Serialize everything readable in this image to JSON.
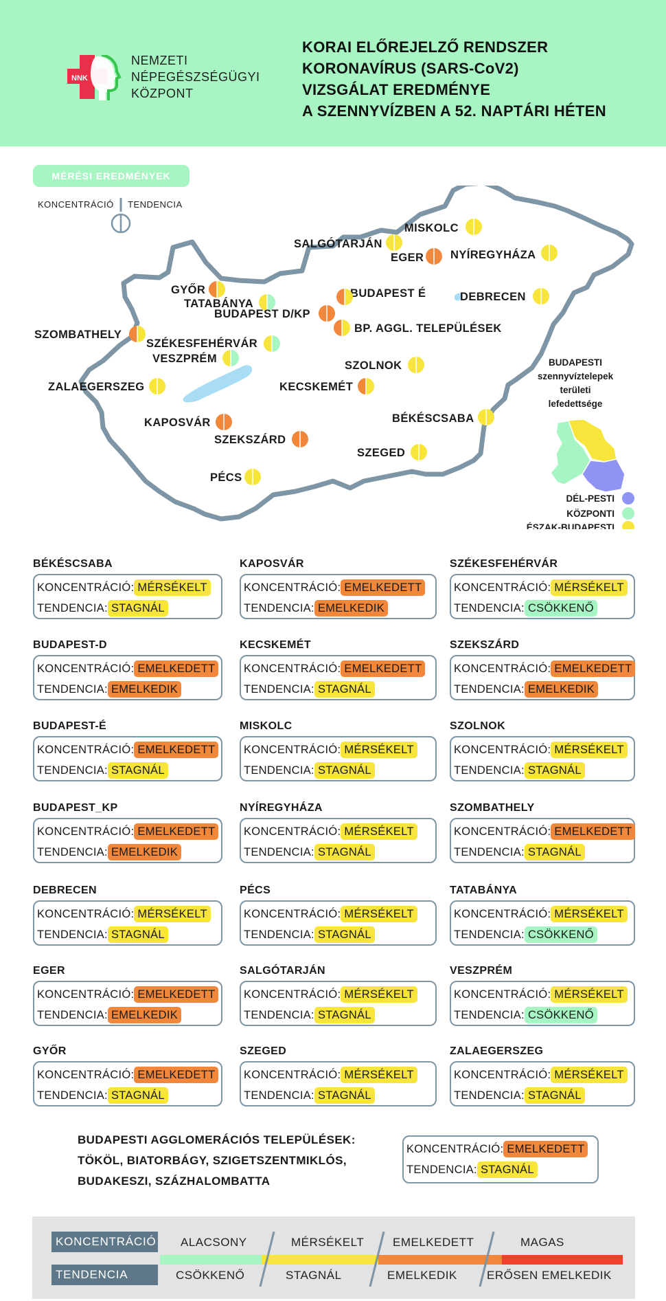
{
  "header": {
    "logo_text": "NNK",
    "org_lines": [
      "NEMZETI",
      "NÉPEGÉSZSÉGÜGYI",
      "KÖZPONT"
    ],
    "title_lines": [
      "KORAI ELŐREJELZŐ RENDSZER",
      "KORONAVÍRUS (SARS-CoV2)",
      "VIZSGÁLAT EREDMÉNYE",
      "A SZENNYVÍZBEN A 52. NAPTÁRI HÉTEN"
    ]
  },
  "map_section": {
    "pill": "MÉRÉSI EREDMÉNYEK",
    "legend_left": "KONCENTRÁCIÓ",
    "legend_right": "TENDENCIA",
    "budapest_legend": {
      "title_lines": [
        "BUDAPESTI",
        "szennyvíztelepek",
        "területi",
        "lefedettsége"
      ],
      "items": [
        {
          "label": "DÉL-PESTI",
          "color": "#8f93f2"
        },
        {
          "label": "KÖZPONTI",
          "color": "#a7f5c2"
        },
        {
          "label": "ÉSZAK-BUDAPESTI",
          "color": "#f7e53b"
        }
      ]
    },
    "cities": [
      {
        "name": "MISKOLC",
        "left": "yellow",
        "right": "yellow"
      },
      {
        "name": "SALGÓTARJÁN",
        "left": "yellow",
        "right": "yellow"
      },
      {
        "name": "EGER",
        "left": "orange",
        "right": "orange"
      },
      {
        "name": "NYÍREGYHÁZA",
        "left": "yellow",
        "right": "yellow"
      },
      {
        "name": "GYŐR",
        "left": "orange",
        "right": "yellow"
      },
      {
        "name": "TATABÁNYA",
        "left": "yellow",
        "right": "green"
      },
      {
        "name": "BUDAPEST É",
        "left": "orange",
        "right": "yellow"
      },
      {
        "name": "BUDAPEST D/KP",
        "left": "orange",
        "right": "orange"
      },
      {
        "name": "BP. AGGL. TELEPÜLÉSEK",
        "left": "orange",
        "right": "yellow"
      },
      {
        "name": "DEBRECEN",
        "left": "yellow",
        "right": "yellow"
      },
      {
        "name": "SZOMBATHELY",
        "left": "orange",
        "right": "yellow"
      },
      {
        "name": "SZÉKESFEHÉRVÁR",
        "left": "yellow",
        "right": "green"
      },
      {
        "name": "VESZPRÉM",
        "left": "yellow",
        "right": "green"
      },
      {
        "name": "SZOLNOK",
        "left": "yellow",
        "right": "yellow"
      },
      {
        "name": "ZALAEGERSZEG",
        "left": "yellow",
        "right": "yellow"
      },
      {
        "name": "KECSKEMÉT",
        "left": "orange",
        "right": "yellow"
      },
      {
        "name": "KAPOSVÁR",
        "left": "orange",
        "right": "orange"
      },
      {
        "name": "BÉKÉSCSABA",
        "left": "yellow",
        "right": "yellow"
      },
      {
        "name": "SZEKSZÁRD",
        "left": "orange",
        "right": "orange"
      },
      {
        "name": "SZEGED",
        "left": "yellow",
        "right": "yellow"
      },
      {
        "name": "PÉCS",
        "left": "yellow",
        "right": "yellow"
      }
    ]
  },
  "labels": {
    "conc": "KONCENTRÁCIÓ:",
    "tend": "TENDENCIA:"
  },
  "cards": [
    {
      "title": "BÉKÉSCSABA",
      "conc": "MÉRSÉKELT",
      "conc_color": "yellow",
      "tend": "STAGNÁL",
      "tend_color": "yellow"
    },
    {
      "title": "KAPOSVÁR",
      "conc": "EMELKEDETT",
      "conc_color": "orange",
      "tend": "EMELKEDIK",
      "tend_color": "orange"
    },
    {
      "title": "SZÉKESFEHÉRVÁR",
      "conc": "MÉRSÉKELT",
      "conc_color": "yellow",
      "tend": "CSÖKKENŐ",
      "tend_color": "green"
    },
    {
      "title": "BUDAPEST-D",
      "conc": "EMELKEDETT",
      "conc_color": "orange",
      "tend": "EMELKEDIK",
      "tend_color": "orange"
    },
    {
      "title": "KECSKEMÉT",
      "conc": "EMELKEDETT",
      "conc_color": "orange",
      "tend": "STAGNÁL",
      "tend_color": "yellow"
    },
    {
      "title": "SZEKSZÁRD",
      "conc": "EMELKEDETT",
      "conc_color": "orange",
      "tend": "EMELKEDIK",
      "tend_color": "orange"
    },
    {
      "title": "BUDAPEST-É",
      "conc": "EMELKEDETT",
      "conc_color": "orange",
      "tend": "STAGNÁL",
      "tend_color": "yellow"
    },
    {
      "title": "MISKOLC",
      "conc": "MÉRSÉKELT",
      "conc_color": "yellow",
      "tend": "STAGNÁL",
      "tend_color": "yellow"
    },
    {
      "title": "SZOLNOK",
      "conc": "MÉRSÉKELT",
      "conc_color": "yellow",
      "tend": "STAGNÁL",
      "tend_color": "yellow"
    },
    {
      "title": "BUDAPEST_KP",
      "conc": "EMELKEDETT",
      "conc_color": "orange",
      "tend": "EMELKEDIK",
      "tend_color": "orange"
    },
    {
      "title": "NYÍREGYHÁZA",
      "conc": "MÉRSÉKELT",
      "conc_color": "yellow",
      "tend": "STAGNÁL",
      "tend_color": "yellow"
    },
    {
      "title": "SZOMBATHELY",
      "conc": "EMELKEDETT",
      "conc_color": "orange",
      "tend": "STAGNÁL",
      "tend_color": "yellow"
    },
    {
      "title": "DEBRECEN",
      "conc": "MÉRSÉKELT",
      "conc_color": "yellow",
      "tend": "STAGNÁL",
      "tend_color": "yellow"
    },
    {
      "title": "PÉCS",
      "conc": "MÉRSÉKELT",
      "conc_color": "yellow",
      "tend": "STAGNÁL",
      "tend_color": "yellow"
    },
    {
      "title": "TATABÁNYA",
      "conc": "MÉRSÉKELT",
      "conc_color": "yellow",
      "tend": "CSÖKKENŐ",
      "tend_color": "green"
    },
    {
      "title": "EGER",
      "conc": "EMELKEDETT",
      "conc_color": "orange",
      "tend": "EMELKEDIK",
      "tend_color": "orange"
    },
    {
      "title": "SALGÓTARJÁN",
      "conc": "MÉRSÉKELT",
      "conc_color": "yellow",
      "tend": "STAGNÁL",
      "tend_color": "yellow"
    },
    {
      "title": "VESZPRÉM",
      "conc": "MÉRSÉKELT",
      "conc_color": "yellow",
      "tend": "CSÖKKENŐ",
      "tend_color": "green"
    },
    {
      "title": "GYŐR",
      "conc": "EMELKEDETT",
      "conc_color": "orange",
      "tend": "STAGNÁL",
      "tend_color": "yellow"
    },
    {
      "title": "SZEGED",
      "conc": "MÉRSÉKELT",
      "conc_color": "yellow",
      "tend": "STAGNÁL",
      "tend_color": "yellow"
    },
    {
      "title": "ZALAEGERSZEG",
      "conc": "MÉRSÉKELT",
      "conc_color": "yellow",
      "tend": "STAGNÁL",
      "tend_color": "yellow"
    }
  ],
  "agglomeration": {
    "lines": [
      "BUDAPESTI AGGLOMERÁCIÓS TELEPÜLÉSEK:",
      "TÖKÖL, BIATORBÁGY, SZIGETSZENTMIKLÓS,",
      "BUDAKESZI, SZÁZHALOMBATTA"
    ],
    "conc": "EMELKEDETT",
    "conc_color": "orange",
    "tend": "STAGNÁL",
    "tend_color": "yellow"
  },
  "bottom_legend": {
    "conc_label": "KONCENTRÁCIÓ",
    "tend_label": "TENDENCIA",
    "levels": [
      {
        "conc": "ALACSONY",
        "tend": "CSÖKKENŐ",
        "color": "#a7f5c2"
      },
      {
        "conc": "MÉRSÉKELT",
        "tend": "STAGNÁL",
        "color": "#f7e53b"
      },
      {
        "conc": "EMELKEDETT",
        "tend": "EMELKEDIK",
        "color": "#f0873a"
      },
      {
        "conc": "MAGAS",
        "tend": "ERŐSEN EMELKEDIK",
        "color": "#f2402c"
      }
    ]
  },
  "colors": {
    "yellow": "#f7e53b",
    "orange": "#f0873a",
    "green": "#a7f5c2",
    "red": "#f2402c",
    "border": "#7d95a5",
    "header_bg": "#a7f5c2"
  }
}
